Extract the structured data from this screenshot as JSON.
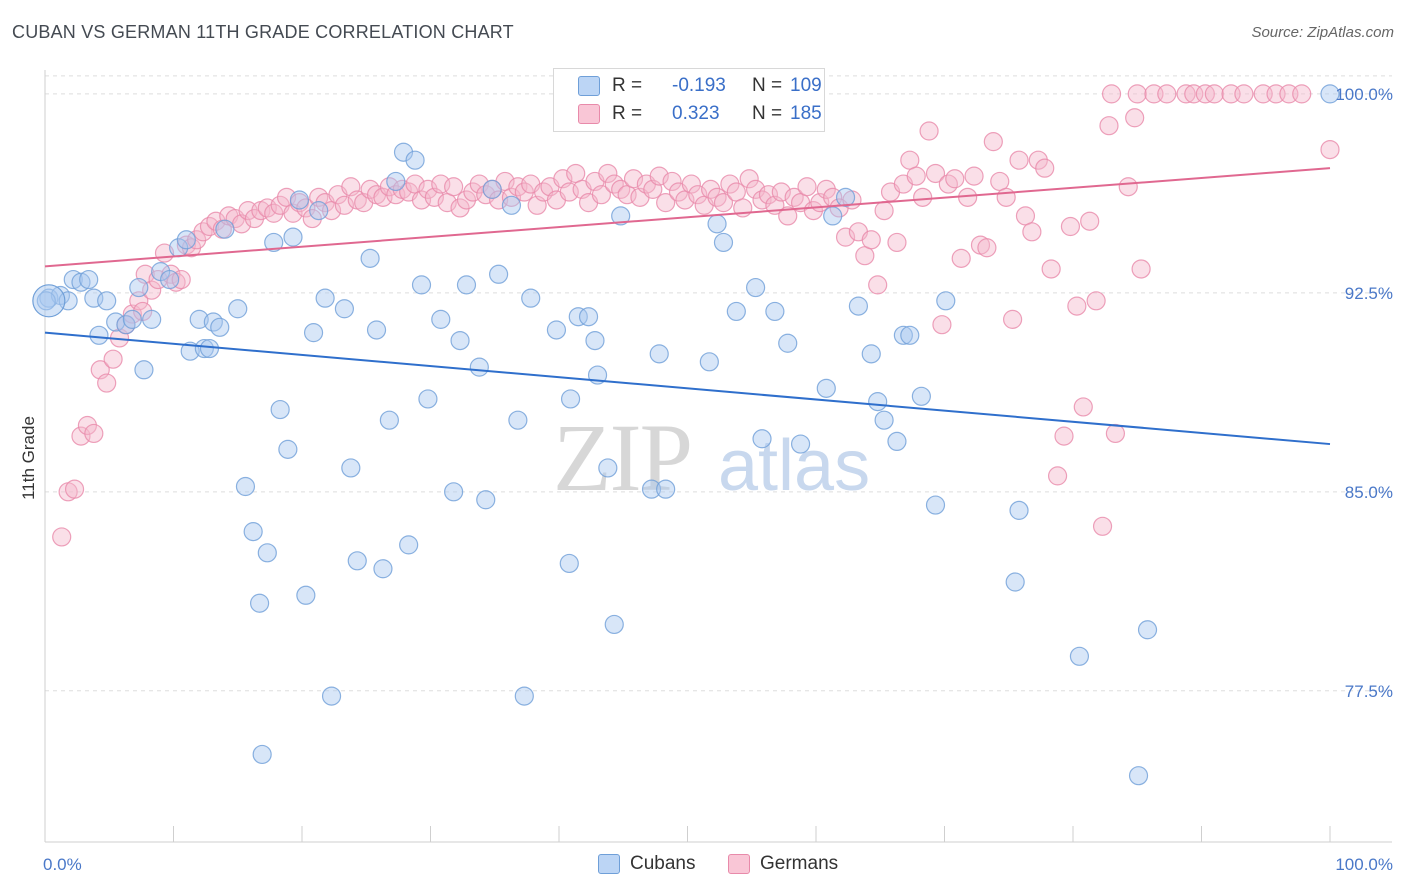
{
  "title": "CUBAN VS GERMAN 11TH GRADE CORRELATION CHART",
  "source": "Source: ZipAtlas.com",
  "watermark": {
    "zip": "ZIP",
    "atlas": "atlas"
  },
  "legend": {
    "rows": [
      {
        "r_label": "R =",
        "r_value": "-0.193",
        "n_label": "N =",
        "n_value": "109"
      },
      {
        "r_label": "R =",
        "r_value": "0.323",
        "n_label": "N =",
        "n_value": "185"
      }
    ]
  },
  "colors": {
    "cubans_fill": "#a8c8f0",
    "cubans_stroke": "#6f9fd8",
    "cubans_line": "#2f6fcc",
    "germans_fill": "#f5b8cc",
    "germans_stroke": "#e88aaa",
    "germans_line": "#e06890",
    "tick_label": "#4a78c8"
  },
  "chart_data": {
    "type": "scatter",
    "title": "CUBAN VS GERMAN 11TH GRADE CORRELATION CHART",
    "xlabel": "",
    "ylabel": "11th Grade",
    "xlim": [
      0,
      100
    ],
    "ylim": [
      71.8,
      100.9
    ],
    "x_tick_labels": [
      "0.0%",
      "100.0%"
    ],
    "y_ticks": [
      77.5,
      85.0,
      92.5,
      100.0
    ],
    "y_tick_labels": [
      "77.5%",
      "85.0%",
      "92.5%",
      "100.0%"
    ],
    "grid": true,
    "legend_position": "bottom",
    "series": [
      {
        "name": "Cubans",
        "R": -0.193,
        "N": 109,
        "trend": {
          "x": [
            0,
            100
          ],
          "y": [
            91.0,
            86.8
          ]
        },
        "points": [
          [
            0.3,
            92.3
          ],
          [
            1.2,
            92.4
          ],
          [
            1.8,
            92.2
          ],
          [
            2.2,
            93.0
          ],
          [
            2.8,
            92.9
          ],
          [
            3.4,
            93.0
          ],
          [
            3.8,
            92.3
          ],
          [
            4.2,
            90.9
          ],
          [
            4.8,
            92.2
          ],
          [
            5.5,
            91.4
          ],
          [
            6.3,
            91.3
          ],
          [
            6.8,
            91.5
          ],
          [
            7.3,
            92.7
          ],
          [
            7.7,
            89.6
          ],
          [
            8.3,
            91.5
          ],
          [
            9.0,
            93.3
          ],
          [
            9.7,
            93.0
          ],
          [
            10.4,
            94.2
          ],
          [
            11.0,
            94.5
          ],
          [
            11.3,
            90.3
          ],
          [
            12.0,
            91.5
          ],
          [
            12.4,
            90.4
          ],
          [
            12.8,
            90.4
          ],
          [
            13.1,
            91.4
          ],
          [
            13.6,
            91.2
          ],
          [
            14.0,
            94.9
          ],
          [
            15.0,
            91.9
          ],
          [
            15.6,
            85.2
          ],
          [
            16.2,
            83.5
          ],
          [
            16.7,
            80.8
          ],
          [
            16.9,
            75.1
          ],
          [
            17.3,
            82.7
          ],
          [
            17.8,
            94.4
          ],
          [
            18.3,
            88.1
          ],
          [
            18.9,
            86.6
          ],
          [
            19.3,
            94.6
          ],
          [
            19.8,
            96.0
          ],
          [
            20.3,
            81.1
          ],
          [
            20.9,
            91.0
          ],
          [
            21.3,
            95.6
          ],
          [
            21.8,
            92.3
          ],
          [
            22.3,
            77.3
          ],
          [
            23.3,
            91.9
          ],
          [
            23.8,
            85.9
          ],
          [
            24.3,
            82.4
          ],
          [
            25.3,
            93.8
          ],
          [
            25.8,
            91.1
          ],
          [
            26.3,
            82.1
          ],
          [
            26.8,
            87.7
          ],
          [
            27.3,
            96.7
          ],
          [
            27.9,
            97.8
          ],
          [
            28.3,
            83.0
          ],
          [
            28.8,
            97.5
          ],
          [
            29.3,
            92.8
          ],
          [
            29.8,
            88.5
          ],
          [
            30.8,
            91.5
          ],
          [
            31.8,
            85.0
          ],
          [
            32.3,
            90.7
          ],
          [
            32.8,
            92.8
          ],
          [
            33.8,
            89.7
          ],
          [
            34.3,
            84.7
          ],
          [
            34.8,
            96.4
          ],
          [
            35.3,
            93.2
          ],
          [
            36.3,
            95.8
          ],
          [
            36.8,
            87.7
          ],
          [
            37.3,
            77.3
          ],
          [
            37.8,
            92.3
          ],
          [
            39.8,
            91.1
          ],
          [
            40.8,
            82.3
          ],
          [
            40.9,
            88.5
          ],
          [
            41.5,
            91.6
          ],
          [
            42.3,
            91.6
          ],
          [
            42.8,
            90.7
          ],
          [
            43.0,
            89.4
          ],
          [
            43.8,
            85.9
          ],
          [
            44.3,
            80.0
          ],
          [
            44.8,
            95.4
          ],
          [
            47.2,
            85.1
          ],
          [
            47.8,
            90.2
          ],
          [
            48.3,
            85.1
          ],
          [
            51.7,
            89.9
          ],
          [
            52.3,
            95.1
          ],
          [
            52.8,
            94.4
          ],
          [
            53.8,
            91.8
          ],
          [
            55.3,
            92.7
          ],
          [
            55.8,
            87.0
          ],
          [
            56.8,
            91.8
          ],
          [
            57.8,
            90.6
          ],
          [
            58.8,
            86.8
          ],
          [
            60.8,
            88.9
          ],
          [
            61.3,
            95.4
          ],
          [
            62.3,
            96.1
          ],
          [
            63.3,
            92.0
          ],
          [
            64.3,
            90.2
          ],
          [
            64.8,
            88.4
          ],
          [
            65.3,
            87.7
          ],
          [
            66.3,
            86.9
          ],
          [
            66.8,
            90.9
          ],
          [
            67.3,
            90.9
          ],
          [
            68.2,
            88.6
          ],
          [
            69.3,
            84.5
          ],
          [
            70.1,
            92.2
          ],
          [
            75.5,
            81.6
          ],
          [
            75.8,
            84.3
          ],
          [
            80.5,
            78.8
          ],
          [
            85.1,
            74.3
          ],
          [
            85.8,
            79.8
          ],
          [
            100.0,
            100.0
          ],
          [
            0.1,
            92.2
          ]
        ]
      },
      {
        "name": "Germans",
        "R": 0.323,
        "N": 185,
        "trend": {
          "x": [
            0,
            100
          ],
          "y": [
            93.5,
            97.2
          ]
        },
        "points": [
          [
            1.3,
            83.3
          ],
          [
            1.8,
            85.0
          ],
          [
            2.3,
            85.1
          ],
          [
            2.8,
            87.1
          ],
          [
            3.3,
            87.5
          ],
          [
            3.8,
            87.2
          ],
          [
            4.3,
            89.6
          ],
          [
            4.8,
            89.1
          ],
          [
            5.3,
            90.0
          ],
          [
            5.8,
            90.8
          ],
          [
            6.3,
            91.3
          ],
          [
            6.8,
            91.7
          ],
          [
            7.3,
            92.2
          ],
          [
            7.6,
            91.8
          ],
          [
            7.8,
            93.2
          ],
          [
            8.3,
            92.6
          ],
          [
            8.8,
            93.0
          ],
          [
            9.3,
            94.0
          ],
          [
            9.8,
            93.2
          ],
          [
            10.2,
            92.9
          ],
          [
            10.6,
            93.0
          ],
          [
            11.0,
            94.3
          ],
          [
            11.4,
            94.2
          ],
          [
            11.8,
            94.5
          ],
          [
            12.3,
            94.8
          ],
          [
            12.8,
            95.0
          ],
          [
            13.3,
            95.2
          ],
          [
            13.8,
            94.9
          ],
          [
            14.3,
            95.4
          ],
          [
            14.8,
            95.3
          ],
          [
            15.3,
            95.1
          ],
          [
            15.8,
            95.6
          ],
          [
            16.3,
            95.3
          ],
          [
            16.8,
            95.6
          ],
          [
            17.3,
            95.7
          ],
          [
            17.8,
            95.5
          ],
          [
            18.3,
            95.8
          ],
          [
            18.8,
            96.1
          ],
          [
            19.3,
            95.5
          ],
          [
            19.8,
            95.9
          ],
          [
            20.3,
            95.7
          ],
          [
            20.8,
            95.3
          ],
          [
            21.3,
            96.1
          ],
          [
            21.8,
            95.9
          ],
          [
            22.3,
            95.6
          ],
          [
            22.8,
            96.2
          ],
          [
            23.3,
            95.8
          ],
          [
            23.8,
            96.5
          ],
          [
            24.3,
            96.0
          ],
          [
            24.8,
            95.9
          ],
          [
            25.3,
            96.4
          ],
          [
            25.8,
            96.2
          ],
          [
            26.3,
            96.1
          ],
          [
            26.8,
            96.5
          ],
          [
            27.3,
            96.2
          ],
          [
            27.8,
            96.4
          ],
          [
            28.3,
            96.3
          ],
          [
            28.8,
            96.6
          ],
          [
            29.3,
            96.0
          ],
          [
            29.8,
            96.4
          ],
          [
            30.3,
            96.1
          ],
          [
            30.8,
            96.6
          ],
          [
            31.3,
            95.9
          ],
          [
            31.8,
            96.5
          ],
          [
            32.3,
            95.7
          ],
          [
            32.8,
            96.0
          ],
          [
            33.3,
            96.3
          ],
          [
            33.8,
            96.6
          ],
          [
            34.3,
            96.2
          ],
          [
            34.8,
            96.4
          ],
          [
            35.3,
            96.0
          ],
          [
            35.8,
            96.7
          ],
          [
            36.3,
            96.1
          ],
          [
            36.8,
            96.5
          ],
          [
            37.3,
            96.3
          ],
          [
            37.8,
            96.6
          ],
          [
            38.3,
            95.8
          ],
          [
            38.8,
            96.3
          ],
          [
            39.3,
            96.5
          ],
          [
            39.8,
            96.0
          ],
          [
            40.3,
            96.8
          ],
          [
            40.8,
            96.3
          ],
          [
            41.3,
            97.0
          ],
          [
            41.8,
            96.4
          ],
          [
            42.3,
            95.9
          ],
          [
            42.8,
            96.7
          ],
          [
            43.3,
            96.2
          ],
          [
            43.8,
            97.0
          ],
          [
            44.3,
            96.6
          ],
          [
            44.8,
            96.4
          ],
          [
            45.3,
            96.2
          ],
          [
            45.8,
            96.8
          ],
          [
            46.3,
            96.1
          ],
          [
            46.8,
            96.6
          ],
          [
            47.3,
            96.4
          ],
          [
            47.8,
            96.9
          ],
          [
            48.3,
            95.9
          ],
          [
            48.8,
            96.7
          ],
          [
            49.3,
            96.3
          ],
          [
            49.8,
            96.0
          ],
          [
            50.3,
            96.6
          ],
          [
            50.8,
            96.2
          ],
          [
            51.3,
            95.8
          ],
          [
            51.8,
            96.4
          ],
          [
            52.3,
            96.1
          ],
          [
            52.8,
            95.9
          ],
          [
            53.3,
            96.6
          ],
          [
            53.8,
            96.3
          ],
          [
            54.3,
            95.7
          ],
          [
            54.8,
            96.8
          ],
          [
            55.3,
            96.4
          ],
          [
            55.8,
            96.0
          ],
          [
            56.3,
            96.2
          ],
          [
            56.8,
            95.8
          ],
          [
            57.3,
            96.3
          ],
          [
            57.8,
            95.4
          ],
          [
            58.3,
            96.1
          ],
          [
            58.8,
            95.9
          ],
          [
            59.3,
            96.5
          ],
          [
            59.8,
            95.6
          ],
          [
            60.3,
            95.9
          ],
          [
            60.8,
            96.4
          ],
          [
            61.3,
            96.1
          ],
          [
            61.8,
            95.7
          ],
          [
            62.3,
            94.6
          ],
          [
            62.8,
            96.0
          ],
          [
            63.3,
            94.8
          ],
          [
            63.8,
            93.9
          ],
          [
            64.3,
            94.5
          ],
          [
            64.8,
            92.8
          ],
          [
            65.3,
            95.6
          ],
          [
            65.8,
            96.3
          ],
          [
            66.3,
            94.4
          ],
          [
            66.8,
            96.6
          ],
          [
            67.3,
            97.5
          ],
          [
            67.8,
            96.9
          ],
          [
            68.3,
            96.1
          ],
          [
            68.8,
            98.6
          ],
          [
            69.3,
            97.0
          ],
          [
            69.8,
            91.3
          ],
          [
            70.3,
            96.6
          ],
          [
            70.8,
            96.8
          ],
          [
            71.3,
            93.8
          ],
          [
            71.8,
            96.1
          ],
          [
            72.3,
            96.9
          ],
          [
            72.8,
            94.3
          ],
          [
            73.3,
            94.2
          ],
          [
            73.8,
            98.2
          ],
          [
            74.3,
            96.7
          ],
          [
            74.8,
            96.1
          ],
          [
            75.3,
            91.5
          ],
          [
            75.8,
            97.5
          ],
          [
            76.3,
            95.4
          ],
          [
            76.8,
            94.8
          ],
          [
            77.3,
            97.5
          ],
          [
            77.8,
            97.2
          ],
          [
            78.3,
            93.4
          ],
          [
            78.8,
            85.6
          ],
          [
            79.3,
            87.1
          ],
          [
            79.8,
            95.0
          ],
          [
            80.3,
            92.0
          ],
          [
            80.8,
            88.2
          ],
          [
            81.3,
            95.2
          ],
          [
            81.8,
            92.2
          ],
          [
            82.3,
            83.7
          ],
          [
            82.8,
            98.8
          ],
          [
            83.3,
            87.2
          ],
          [
            84.3,
            96.5
          ],
          [
            84.8,
            99.1
          ],
          [
            85.3,
            93.4
          ],
          [
            83.0,
            100.0
          ],
          [
            85.0,
            100.0
          ],
          [
            86.3,
            100.0
          ],
          [
            87.3,
            100.0
          ],
          [
            88.8,
            100.0
          ],
          [
            89.4,
            100.0
          ],
          [
            90.3,
            100.0
          ],
          [
            91.0,
            100.0
          ],
          [
            92.3,
            100.0
          ],
          [
            93.3,
            100.0
          ],
          [
            94.8,
            100.0
          ],
          [
            95.8,
            100.0
          ],
          [
            96.8,
            100.0
          ],
          [
            97.8,
            100.0
          ],
          [
            100.0,
            97.9
          ]
        ]
      }
    ]
  }
}
